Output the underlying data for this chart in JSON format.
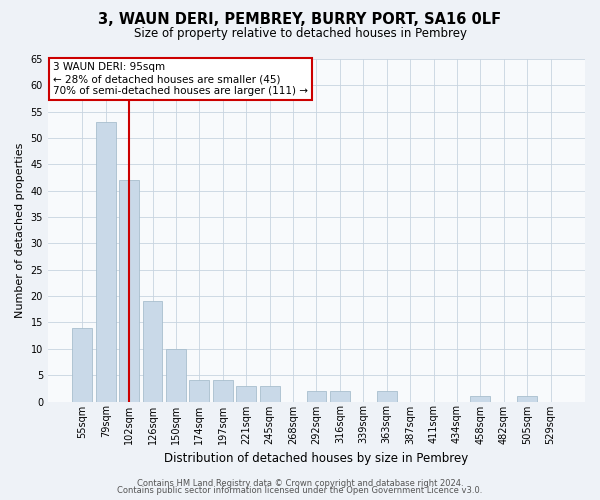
{
  "title": "3, WAUN DERI, PEMBREY, BURRY PORT, SA16 0LF",
  "subtitle": "Size of property relative to detached houses in Pembrey",
  "xlabel": "Distribution of detached houses by size in Pembrey",
  "ylabel": "Number of detached properties",
  "bar_labels": [
    "55sqm",
    "79sqm",
    "102sqm",
    "126sqm",
    "150sqm",
    "174sqm",
    "197sqm",
    "221sqm",
    "245sqm",
    "268sqm",
    "292sqm",
    "316sqm",
    "339sqm",
    "363sqm",
    "387sqm",
    "411sqm",
    "434sqm",
    "458sqm",
    "482sqm",
    "505sqm",
    "529sqm"
  ],
  "bar_values": [
    14,
    53,
    42,
    19,
    10,
    4,
    4,
    3,
    3,
    0,
    2,
    2,
    0,
    2,
    0,
    0,
    0,
    1,
    0,
    1,
    0
  ],
  "bar_color": "#c9d9e8",
  "bar_edge_color": "#a8bece",
  "vline_x_index": 2,
  "vline_color": "#cc0000",
  "ylim": [
    0,
    65
  ],
  "yticks": [
    0,
    5,
    10,
    15,
    20,
    25,
    30,
    35,
    40,
    45,
    50,
    55,
    60,
    65
  ],
  "annotation_title": "3 WAUN DERI: 95sqm",
  "annotation_line1": "← 28% of detached houses are smaller (45)",
  "annotation_line2": "70% of semi-detached houses are larger (111) →",
  "annotation_box_facecolor": "#ffffff",
  "annotation_box_edgecolor": "#cc0000",
  "footer1": "Contains HM Land Registry data © Crown copyright and database right 2024.",
  "footer2": "Contains public sector information licensed under the Open Government Licence v3.0.",
  "bg_color": "#eef2f7",
  "plot_bg_color": "#f8fafc",
  "grid_color": "#c8d4e0",
  "title_fontsize": 10.5,
  "subtitle_fontsize": 8.5,
  "ylabel_fontsize": 8,
  "xlabel_fontsize": 8.5,
  "tick_fontsize": 7,
  "footer_fontsize": 6,
  "annotation_fontsize": 7.5
}
